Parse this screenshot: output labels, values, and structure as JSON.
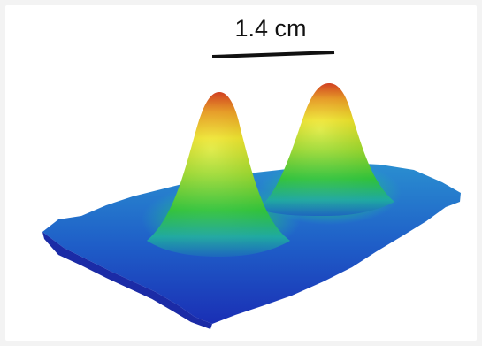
{
  "figure": {
    "scale_bar_label": "1.4 cm",
    "colormap": [
      "#1a2fb5",
      "#1f6fd0",
      "#21b8b0",
      "#2fd43a",
      "#9be21c",
      "#f2e60d",
      "#f59a0c",
      "#e2340f"
    ],
    "background_color": "#ffffff"
  }
}
